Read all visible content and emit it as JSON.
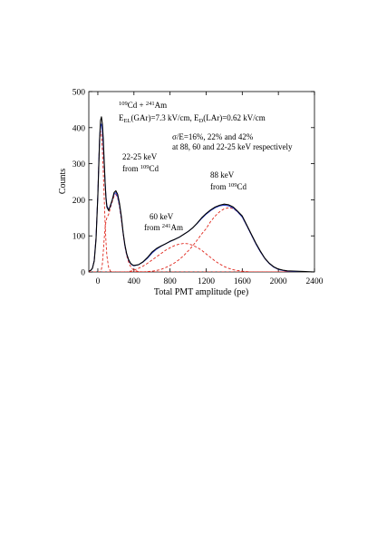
{
  "chart_data": {
    "type": "line",
    "xlabel": "Total PMT amplitude (pe)",
    "ylabel": "Counts",
    "xlim": [
      -100,
      2400
    ],
    "ylim": [
      0,
      500
    ],
    "x_ticks": [
      0,
      400,
      800,
      1200,
      1600,
      2000,
      2400
    ],
    "y_ticks": [
      0,
      100,
      200,
      300,
      400,
      500
    ],
    "x_tick_labels": [
      "0",
      "400",
      "800",
      "1200",
      "1600",
      "2000",
      "2400"
    ],
    "y_tick_labels": [
      "0",
      "100",
      "200",
      "300",
      "400",
      "500"
    ],
    "grid": false,
    "annotations": {
      "source": {
        "pre1": "109",
        "mid1": "Cd + ",
        "pre2": "241",
        "mid2": "Am"
      },
      "fields": {
        "e1": "E",
        "s1": "EL",
        "t1": "(GAr)=7.3 kV/cm, E",
        "s2": "D",
        "t2": "(LAr)=0.62 kV/cm"
      },
      "resolution_line1": "σ/E=16%, 22% and 42%",
      "resolution_line2": "at 88, 60 and 22-25 keV respectively",
      "peak_22_line1": "22-25 keV",
      "peak_22_line2": {
        "pre": "from ",
        "sup": "109",
        "post": "Cd"
      },
      "peak_60_line1": "60 keV",
      "peak_60_line2": {
        "pre": "from ",
        "sup": "241",
        "post": "Am"
      },
      "peak_88_line1": "88 keV",
      "peak_88_line2": {
        "pre": "from ",
        "sup": "109",
        "post": "Cd"
      }
    },
    "colors": {
      "data": "#000000",
      "fit_total": "#2b3fcf",
      "components": "#e0261c"
    },
    "x": [
      -100,
      -80,
      -60,
      -40,
      -20,
      0,
      10,
      20,
      30,
      40,
      50,
      60,
      70,
      80,
      90,
      100,
      120,
      140,
      160,
      180,
      200,
      220,
      240,
      260,
      280,
      300,
      320,
      340,
      360,
      380,
      400,
      450,
      500,
      550,
      600,
      650,
      700,
      750,
      800,
      850,
      900,
      950,
      1000,
      1050,
      1100,
      1150,
      1200,
      1250,
      1300,
      1350,
      1400,
      1450,
      1500,
      1550,
      1600,
      1650,
      1700,
      1750,
      1800,
      1850,
      1900,
      1950,
      2000,
      2050,
      2100,
      2200,
      2300,
      2400
    ],
    "series": [
      {
        "values": [
          2,
          4,
          10,
          30,
          90,
          210,
          290,
          370,
          420,
          430,
          410,
          370,
          310,
          250,
          205,
          180,
          170,
          185,
          200,
          220,
          225,
          215,
          190,
          155,
          110,
          75,
          50,
          35,
          25,
          20,
          18,
          20,
          28,
          40,
          55,
          65,
          72,
          78,
          85,
          90,
          96,
          104,
          112,
          122,
          135,
          150,
          162,
          172,
          180,
          185,
          188,
          186,
          180,
          168,
          155,
          130,
          105,
          80,
          58,
          38,
          24,
          14,
          8,
          5,
          3,
          2,
          1,
          0
        ]
      },
      {
        "values": [
          2,
          4,
          10,
          32,
          95,
          215,
          300,
          372,
          405,
          410,
          390,
          350,
          300,
          250,
          210,
          185,
          172,
          182,
          200,
          215,
          220,
          208,
          185,
          150,
          108,
          72,
          48,
          33,
          24,
          19,
          17,
          20,
          27,
          38,
          52,
          63,
          71,
          78,
          84,
          90,
          96,
          104,
          112,
          122,
          134,
          148,
          160,
          170,
          178,
          183,
          185,
          183,
          177,
          166,
          152,
          128,
          103,
          78,
          56,
          37,
          23,
          13,
          7,
          4,
          2,
          1,
          0,
          0
        ]
      },
      {
        "values": [
          2,
          4,
          10,
          32,
          95,
          215,
          300,
          370,
          390,
          380,
          340,
          280,
          210,
          140,
          85,
          45,
          12,
          2,
          0,
          0,
          0,
          0,
          0,
          0,
          0,
          0,
          0,
          0,
          0,
          0,
          0,
          0,
          0,
          0,
          0,
          0,
          0,
          0,
          0,
          0,
          0,
          0,
          0,
          0,
          0,
          0,
          0,
          0,
          0,
          0,
          0,
          0,
          0,
          0,
          0,
          0,
          0,
          0,
          0,
          0,
          0,
          0,
          0,
          0,
          0,
          0,
          0,
          0
        ]
      },
      {
        "values": [
          0,
          0,
          0,
          0,
          0,
          0,
          0,
          0,
          2,
          8,
          22,
          55,
          90,
          120,
          140,
          150,
          160,
          178,
          195,
          210,
          215,
          205,
          180,
          145,
          105,
          70,
          45,
          28,
          16,
          9,
          5,
          1,
          0,
          0,
          0,
          0,
          0,
          0,
          0,
          0,
          0,
          0,
          0,
          0,
          0,
          0,
          0,
          0,
          0,
          0,
          0,
          0,
          0,
          0,
          0,
          0,
          0,
          0,
          0,
          0,
          0,
          0,
          0,
          0,
          0,
          0,
          0,
          0
        ]
      },
      {
        "values": [
          0,
          0,
          0,
          0,
          0,
          0,
          0,
          0,
          0,
          0,
          0,
          0,
          0,
          0,
          0,
          0,
          0,
          0,
          0,
          0,
          0,
          0,
          0,
          0,
          0,
          0,
          0,
          1,
          2,
          3,
          5,
          10,
          16,
          24,
          33,
          42,
          51,
          60,
          67,
          73,
          77,
          79,
          78,
          74,
          68,
          60,
          50,
          40,
          30,
          22,
          15,
          10,
          6,
          4,
          2,
          1,
          0,
          0,
          0,
          0,
          0,
          0,
          0,
          0,
          0,
          0,
          0,
          0
        ]
      },
      {
        "values": [
          0,
          0,
          0,
          0,
          0,
          0,
          0,
          0,
          0,
          0,
          0,
          0,
          0,
          0,
          0,
          0,
          0,
          0,
          0,
          0,
          0,
          0,
          0,
          0,
          0,
          0,
          0,
          0,
          0,
          0,
          0,
          0,
          0,
          1,
          2,
          4,
          7,
          12,
          18,
          25,
          34,
          45,
          58,
          72,
          88,
          105,
          120,
          140,
          155,
          167,
          175,
          178,
          176,
          166,
          152,
          128,
          103,
          78,
          56,
          37,
          23,
          13,
          7,
          4,
          2,
          1,
          0,
          0
        ]
      }
    ]
  }
}
